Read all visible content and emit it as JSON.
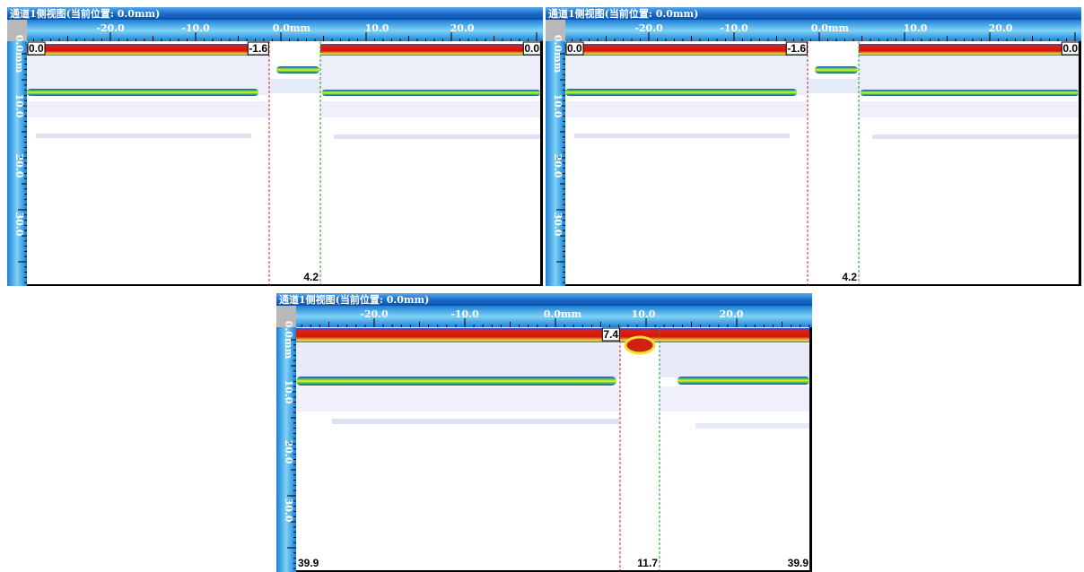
{
  "panels": [
    {
      "title": "通道1侧视图(当前位置: 0.0mm)",
      "x_labels": [
        "-20.0",
        "-10.0",
        "0.0mm",
        "10.0",
        "20.0"
      ],
      "y_labels": [
        "0.0mm",
        "10.0",
        "20.0",
        "30.0"
      ],
      "labels": {
        "top_left": "0.0",
        "cursor": "-1.6",
        "top_right": "0.0",
        "bottom_cursor": "4.2"
      }
    },
    {
      "title": "通道1侧视图(当前位置: 0.0mm)",
      "x_labels": [
        "-20.0",
        "-10.0",
        "0.0mm",
        "10.0",
        "20.0"
      ],
      "y_labels": [
        "0.0mm",
        "10.0",
        "20.0",
        "30.0"
      ],
      "labels": {
        "top_left": "0.0",
        "cursor": "-1.6",
        "top_right": "0.0",
        "bottom_cursor": "4.2"
      }
    },
    {
      "title": "通道1侧视图(当前位置: 0.0mm)",
      "x_labels": [
        "-20.0",
        "-10.0",
        "0.0mm",
        "10.0",
        "20.0"
      ],
      "y_labels": [
        "0.0mm",
        "10.0",
        "20.0",
        "30.0"
      ],
      "labels": {
        "cursor": "7.4",
        "bottom_left": "39.9",
        "bottom_cursor": "11.7",
        "bottom_right": "39.9"
      }
    }
  ]
}
